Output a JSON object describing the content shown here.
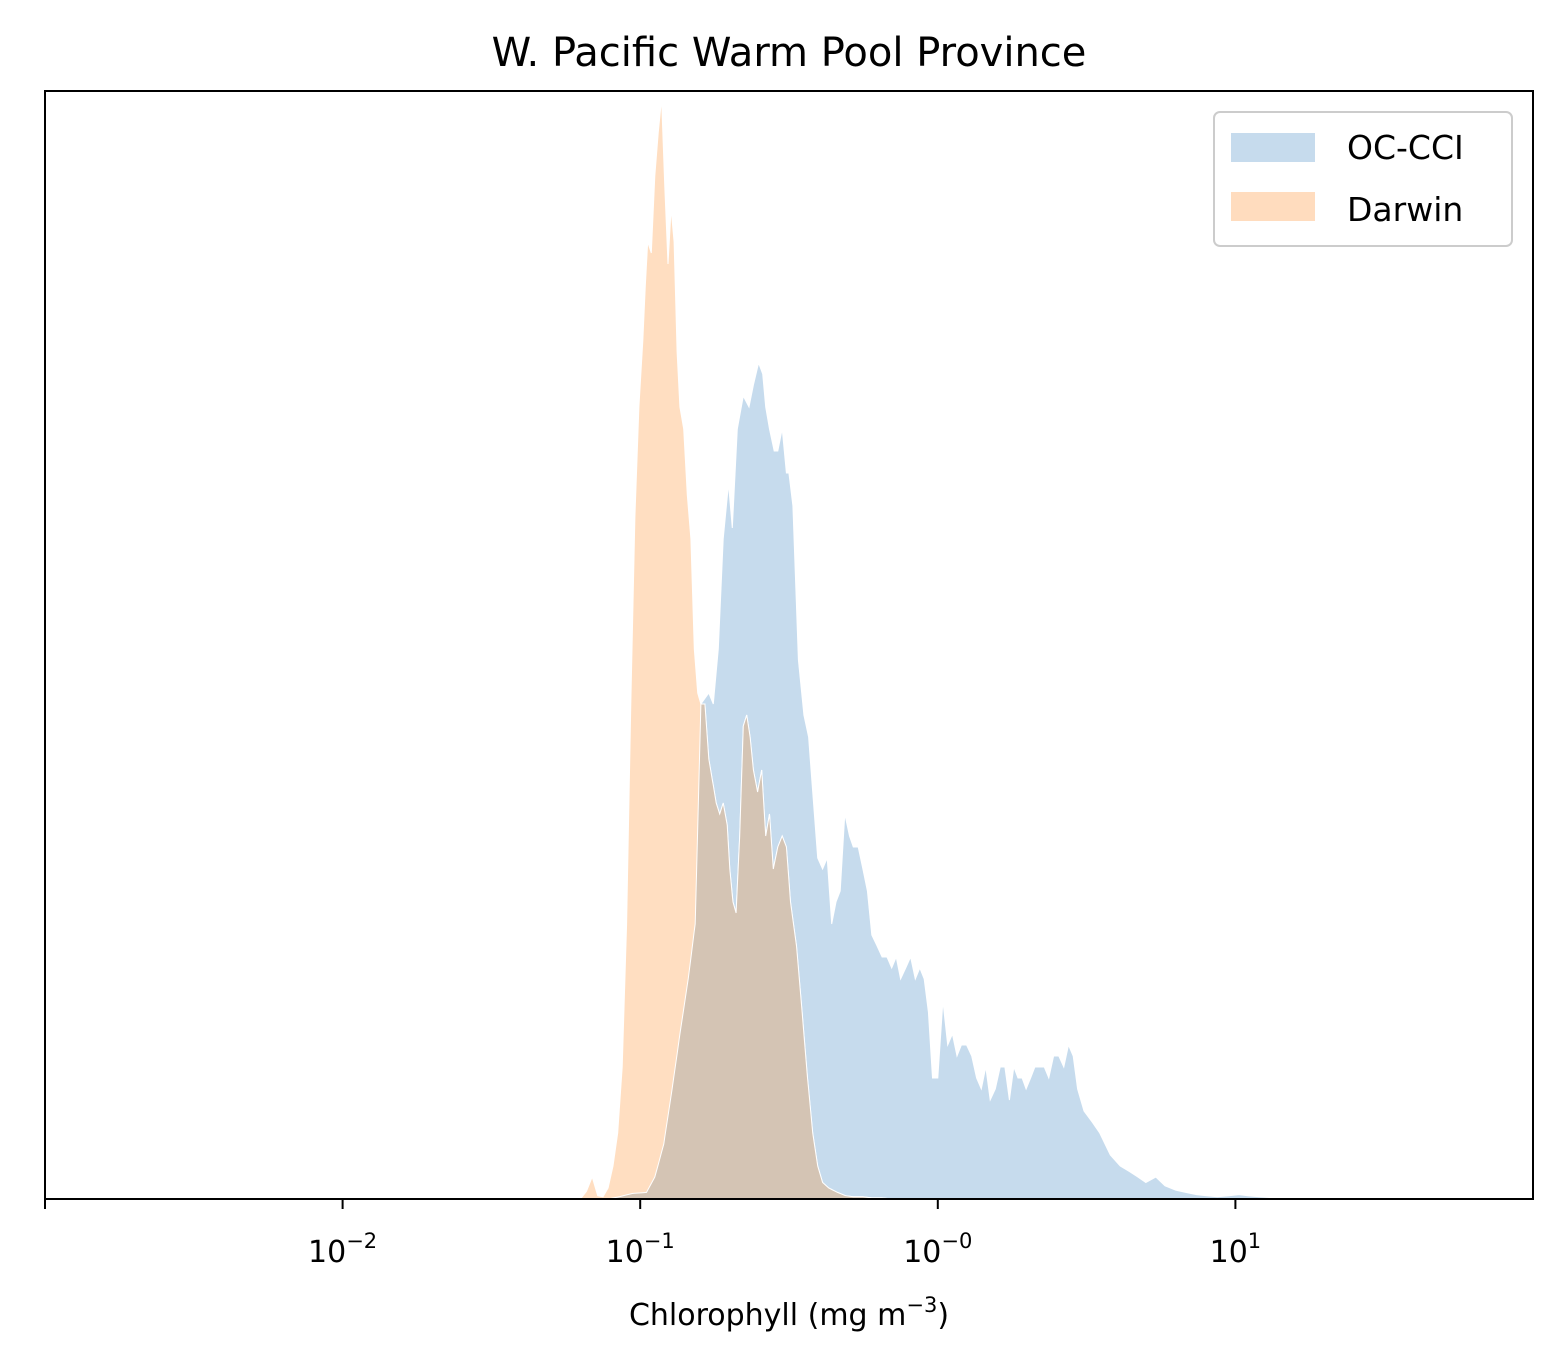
{
  "chart_data": {
    "type": "area",
    "title": "W. Pacific Warm Pool Province",
    "xlabel": {
      "base": "Chlorophyll  (mg m",
      "sup": "−3",
      "tail": ")"
    },
    "ylabel": "",
    "x_scale": "log",
    "xlim": [
      0.001,
      100
    ],
    "ylim": [
      0,
      1.0
    ],
    "y_ticks_visible": false,
    "grid": false,
    "legend": "top-right",
    "x_ticks": [
      {
        "value": 0.01,
        "base": "10",
        "exp": "−2"
      },
      {
        "value": 0.1,
        "base": "10",
        "exp": "−1"
      },
      {
        "value": 1,
        "base": "10",
        "exp": "−0"
      },
      {
        "value": 10,
        "base": "10",
        "exp": "1"
      }
    ],
    "series": [
      {
        "name": "OC-CCI",
        "color": "#c6dbed",
        "points": [
          [
            0.078,
            0
          ],
          [
            0.085,
            0.002
          ],
          [
            0.094,
            0.005
          ],
          [
            0.105,
            0.006
          ],
          [
            0.112,
            0.02
          ],
          [
            0.12,
            0.05
          ],
          [
            0.128,
            0.1
          ],
          [
            0.136,
            0.15
          ],
          [
            0.145,
            0.2
          ],
          [
            0.153,
            0.25
          ],
          [
            0.16,
            0.45
          ],
          [
            0.17,
            0.46
          ],
          [
            0.176,
            0.45
          ],
          [
            0.183,
            0.5
          ],
          [
            0.19,
            0.6
          ],
          [
            0.198,
            0.65
          ],
          [
            0.204,
            0.61
          ],
          [
            0.212,
            0.7
          ],
          [
            0.222,
            0.73
          ],
          [
            0.232,
            0.72
          ],
          [
            0.24,
            0.74
          ],
          [
            0.25,
            0.76
          ],
          [
            0.258,
            0.75
          ],
          [
            0.264,
            0.72
          ],
          [
            0.272,
            0.7
          ],
          [
            0.282,
            0.68
          ],
          [
            0.29,
            0.68
          ],
          [
            0.3,
            0.7
          ],
          [
            0.31,
            0.66
          ],
          [
            0.316,
            0.66
          ],
          [
            0.326,
            0.63
          ],
          [
            0.34,
            0.49
          ],
          [
            0.355,
            0.44
          ],
          [
            0.368,
            0.42
          ],
          [
            0.38,
            0.37
          ],
          [
            0.395,
            0.31
          ],
          [
            0.41,
            0.3
          ],
          [
            0.425,
            0.31
          ],
          [
            0.44,
            0.25
          ],
          [
            0.455,
            0.27
          ],
          [
            0.47,
            0.28
          ],
          [
            0.487,
            0.35
          ],
          [
            0.505,
            0.33
          ],
          [
            0.52,
            0.32
          ],
          [
            0.54,
            0.32
          ],
          [
            0.56,
            0.3
          ],
          [
            0.58,
            0.28
          ],
          [
            0.6,
            0.24
          ],
          [
            0.625,
            0.23
          ],
          [
            0.65,
            0.22
          ],
          [
            0.675,
            0.22
          ],
          [
            0.7,
            0.21
          ],
          [
            0.725,
            0.22
          ],
          [
            0.75,
            0.2
          ],
          [
            0.78,
            0.21
          ],
          [
            0.81,
            0.22
          ],
          [
            0.84,
            0.2
          ],
          [
            0.87,
            0.21
          ],
          [
            0.9,
            0.2
          ],
          [
            0.93,
            0.17
          ],
          [
            0.96,
            0.11
          ],
          [
            1.0,
            0.11
          ],
          [
            1.04,
            0.18
          ],
          [
            1.08,
            0.14
          ],
          [
            1.12,
            0.15
          ],
          [
            1.16,
            0.13
          ],
          [
            1.2,
            0.14
          ],
          [
            1.25,
            0.14
          ],
          [
            1.3,
            0.13
          ],
          [
            1.35,
            0.11
          ],
          [
            1.4,
            0.1
          ],
          [
            1.45,
            0.12
          ],
          [
            1.5,
            0.09
          ],
          [
            1.56,
            0.1
          ],
          [
            1.62,
            0.12
          ],
          [
            1.68,
            0.12
          ],
          [
            1.74,
            0.09
          ],
          [
            1.8,
            0.12
          ],
          [
            1.86,
            0.11
          ],
          [
            1.92,
            0.11
          ],
          [
            1.98,
            0.1
          ],
          [
            2.05,
            0.11
          ],
          [
            2.12,
            0.12
          ],
          [
            2.2,
            0.12
          ],
          [
            2.28,
            0.12
          ],
          [
            2.36,
            0.11
          ],
          [
            2.45,
            0.13
          ],
          [
            2.55,
            0.13
          ],
          [
            2.65,
            0.12
          ],
          [
            2.75,
            0.14
          ],
          [
            2.85,
            0.13
          ],
          [
            2.95,
            0.1
          ],
          [
            3.1,
            0.08
          ],
          [
            3.3,
            0.07
          ],
          [
            3.5,
            0.06
          ],
          [
            3.8,
            0.04
          ],
          [
            4.1,
            0.03
          ],
          [
            4.4,
            0.025
          ],
          [
            4.7,
            0.02
          ],
          [
            5.0,
            0.015
          ],
          [
            5.4,
            0.02
          ],
          [
            5.8,
            0.012
          ],
          [
            6.3,
            0.008
          ],
          [
            6.8,
            0.006
          ],
          [
            7.4,
            0.004
          ],
          [
            8.0,
            0.003
          ],
          [
            8.7,
            0.002
          ],
          [
            9.5,
            0.003
          ],
          [
            10.3,
            0.004
          ],
          [
            11.0,
            0.003
          ],
          [
            12.0,
            0.002
          ],
          [
            13.5,
            0.001
          ],
          [
            15.0,
            0
          ]
        ]
      },
      {
        "name": "Darwin",
        "color": "#ffdcbe",
        "points": [
          [
            0.063,
            0
          ],
          [
            0.066,
            0.007
          ],
          [
            0.069,
            0.02
          ],
          [
            0.072,
            0.003
          ],
          [
            0.075,
            0.002
          ],
          [
            0.078,
            0.01
          ],
          [
            0.081,
            0.03
          ],
          [
            0.084,
            0.06
          ],
          [
            0.087,
            0.12
          ],
          [
            0.09,
            0.25
          ],
          [
            0.093,
            0.45
          ],
          [
            0.096,
            0.62
          ],
          [
            0.099,
            0.72
          ],
          [
            0.102,
            0.78
          ],
          [
            0.104,
            0.83
          ],
          [
            0.106,
            0.87
          ],
          [
            0.109,
            0.86
          ],
          [
            0.112,
            0.93
          ],
          [
            0.115,
            0.97
          ],
          [
            0.118,
            1.0
          ],
          [
            0.121,
            0.92
          ],
          [
            0.124,
            0.85
          ],
          [
            0.127,
            0.9
          ],
          [
            0.13,
            0.87
          ],
          [
            0.133,
            0.77
          ],
          [
            0.136,
            0.72
          ],
          [
            0.14,
            0.7
          ],
          [
            0.144,
            0.64
          ],
          [
            0.148,
            0.6
          ],
          [
            0.152,
            0.5
          ],
          [
            0.156,
            0.46
          ],
          [
            0.16,
            0.45
          ],
          [
            0.165,
            0.45
          ],
          [
            0.17,
            0.4
          ],
          [
            0.175,
            0.38
          ],
          [
            0.18,
            0.36
          ],
          [
            0.185,
            0.35
          ],
          [
            0.19,
            0.36
          ],
          [
            0.196,
            0.34
          ],
          [
            0.2,
            0.3
          ],
          [
            0.205,
            0.27
          ],
          [
            0.21,
            0.26
          ],
          [
            0.216,
            0.33
          ],
          [
            0.222,
            0.43
          ],
          [
            0.228,
            0.44
          ],
          [
            0.234,
            0.42
          ],
          [
            0.24,
            0.39
          ],
          [
            0.248,
            0.37
          ],
          [
            0.256,
            0.39
          ],
          [
            0.264,
            0.33
          ],
          [
            0.272,
            0.35
          ],
          [
            0.28,
            0.3
          ],
          [
            0.29,
            0.32
          ],
          [
            0.3,
            0.33
          ],
          [
            0.31,
            0.32
          ],
          [
            0.32,
            0.27
          ],
          [
            0.335,
            0.23
          ],
          [
            0.35,
            0.17
          ],
          [
            0.365,
            0.11
          ],
          [
            0.38,
            0.06
          ],
          [
            0.395,
            0.03
          ],
          [
            0.41,
            0.015
          ],
          [
            0.43,
            0.01
          ],
          [
            0.46,
            0.006
          ],
          [
            0.49,
            0.003
          ],
          [
            0.52,
            0.002
          ],
          [
            0.56,
            0.002
          ],
          [
            0.6,
            0.001
          ],
          [
            0.65,
            0.001
          ],
          [
            0.7,
            0
          ]
        ]
      }
    ]
  }
}
